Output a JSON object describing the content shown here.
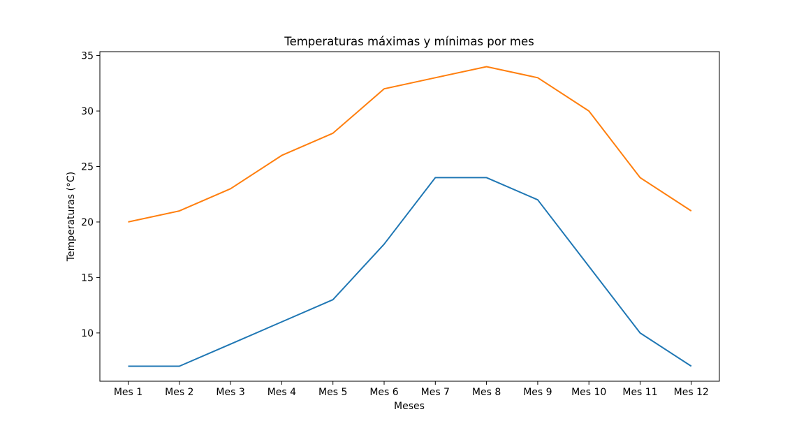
{
  "chart_data": {
    "type": "line",
    "title": "Temperaturas máximas y mínimas por mes",
    "xlabel": "Meses",
    "ylabel": "Temperaturas (°C)",
    "categories": [
      "Mes 1",
      "Mes 2",
      "Mes 3",
      "Mes 4",
      "Mes 5",
      "Mes 6",
      "Mes 7",
      "Mes 8",
      "Mes 9",
      "Mes 10",
      "Mes 11",
      "Mes 12"
    ],
    "series": [
      {
        "color": "#1f77b4",
        "values": [
          7,
          7,
          9,
          11,
          13,
          18,
          24,
          24,
          22,
          16,
          10,
          7
        ]
      },
      {
        "color": "#ff7f0e",
        "values": [
          20,
          21,
          23,
          26,
          28,
          32,
          33,
          34,
          33,
          30,
          24,
          21
        ]
      }
    ],
    "yticks": [
      10,
      15,
      20,
      25,
      30,
      35
    ],
    "ylim": [
      5.65,
      35.35
    ],
    "grid": false,
    "legend": false
  }
}
